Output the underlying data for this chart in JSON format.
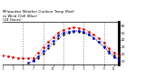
{
  "title": "Milwaukee Weather Outdoor Temp (Red)\nvs Wind Chill (Blue)\n(24 Hours)",
  "title_fontsize": 2.8,
  "background_color": "#ffffff",
  "grid_color": "#888888",
  "ylim": [
    5,
    65
  ],
  "xlim": [
    0,
    23
  ],
  "ytick_values": [
    10,
    20,
    30,
    40,
    50,
    60
  ],
  "ytick_labels": [
    "10",
    "20",
    "30",
    "40",
    "50",
    "60"
  ],
  "xtick_positions": [
    0,
    2,
    4,
    6,
    8,
    10,
    12,
    14,
    16,
    18,
    20,
    22
  ],
  "xtick_labels": [
    "1",
    "3",
    "5",
    "7",
    "9",
    "11",
    "1",
    "3",
    "5",
    "7",
    "9",
    "11"
  ],
  "red_x": [
    0,
    1,
    2,
    3,
    4,
    5,
    6,
    7,
    8,
    9,
    10,
    11,
    12,
    13,
    14,
    15,
    16,
    17,
    18,
    19,
    20,
    21,
    22,
    23
  ],
  "red_y": [
    18,
    17,
    16,
    15,
    14,
    14,
    15,
    22,
    30,
    37,
    44,
    50,
    54,
    56,
    58,
    57,
    55,
    52,
    47,
    42,
    36,
    28,
    22,
    18
  ],
  "blue_x": [
    5,
    6,
    7,
    8,
    9,
    10,
    11,
    12,
    13,
    14,
    15,
    16,
    17,
    18,
    19,
    20,
    21,
    22,
    23
  ],
  "blue_y": [
    8,
    10,
    17,
    25,
    32,
    39,
    46,
    50,
    52,
    53,
    53,
    51,
    48,
    43,
    37,
    30,
    22,
    16,
    12
  ],
  "black_x": [
    6,
    7,
    8,
    9,
    10,
    11,
    12,
    13,
    14,
    15,
    16,
    17,
    18,
    19,
    20,
    21,
    22,
    23
  ],
  "black_y": [
    12,
    15,
    21,
    28,
    35,
    42,
    47,
    50,
    52,
    52,
    50,
    47,
    43,
    37,
    31,
    24,
    18,
    13
  ],
  "red_color": "#cc0000",
  "blue_color": "#0000cc",
  "black_color": "#111111",
  "vgrid_positions": [
    4,
    8,
    12,
    16,
    20
  ]
}
